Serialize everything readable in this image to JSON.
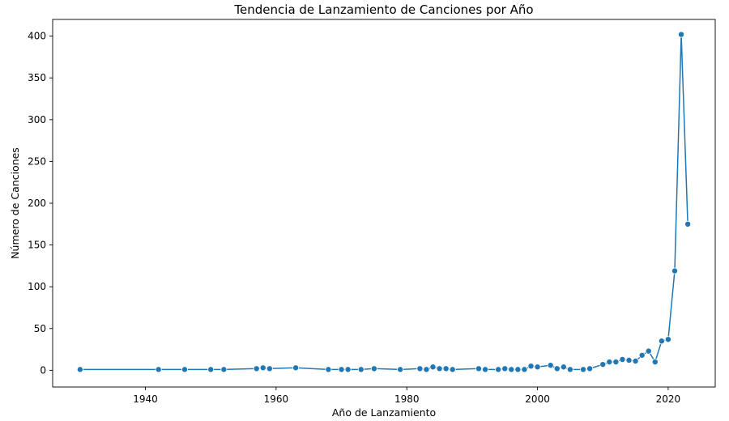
{
  "chart_data": {
    "type": "line",
    "title": "Tendencia de Lanzamiento de Canciones por Año",
    "xlabel": "Año de Lanzamiento",
    "ylabel": "Número de Canciones",
    "xlim": [
      1925.8,
      2027.2
    ],
    "ylim": [
      -20,
      420
    ],
    "xticks": [
      1940,
      1960,
      1980,
      2000,
      2020
    ],
    "yticks": [
      0,
      50,
      100,
      150,
      200,
      250,
      300,
      350,
      400
    ],
    "grid": false,
    "legend": "none",
    "colors": {
      "line": "#1f77b4",
      "marker": "#1f77b4",
      "axes": "#000000"
    },
    "marker": "circle",
    "series": [
      {
        "x": [
          1930,
          1942,
          1946,
          1950,
          1952,
          1957,
          1958,
          1959,
          1963,
          1968,
          1970,
          1971,
          1973,
          1975,
          1979,
          1982,
          1983,
          1984,
          1985,
          1986,
          1987,
          1991,
          1992,
          1994,
          1995,
          1996,
          1997,
          1998,
          1999,
          2000,
          2002,
          2003,
          2004,
          2005,
          2007,
          2008,
          2010,
          2011,
          2012,
          2013,
          2014,
          2015,
          2016,
          2017,
          2018,
          2019,
          2020,
          2021,
          2022,
          2023
        ],
        "values": [
          1,
          1,
          1,
          1,
          1,
          2,
          3,
          2,
          3,
          1,
          1,
          1,
          1,
          2,
          1,
          2,
          1,
          4,
          2,
          2,
          1,
          2,
          1,
          1,
          2,
          1,
          1,
          1,
          5,
          4,
          6,
          2,
          4,
          1,
          1,
          2,
          7,
          10,
          10,
          13,
          12,
          11,
          18,
          23,
          10,
          35,
          37,
          119,
          402,
          175
        ]
      }
    ]
  }
}
